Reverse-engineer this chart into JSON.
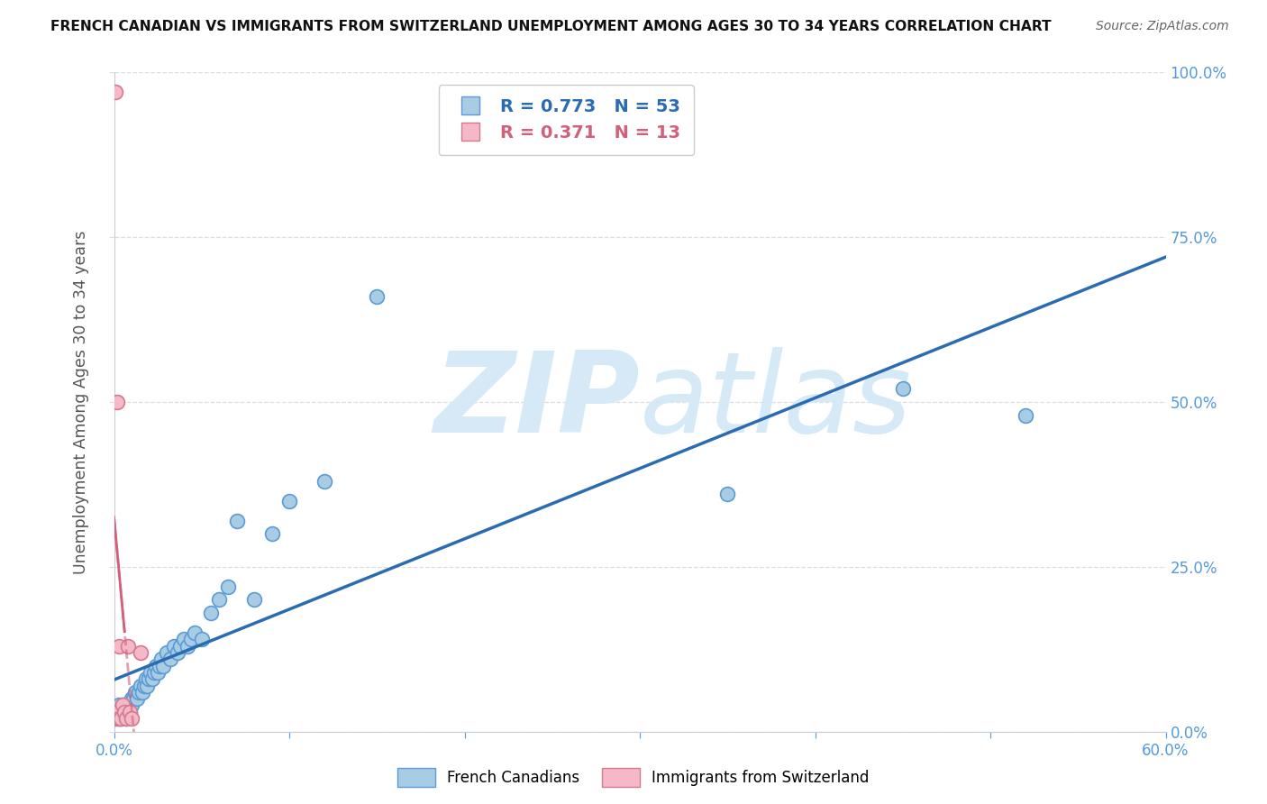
{
  "title": "FRENCH CANADIAN VS IMMIGRANTS FROM SWITZERLAND UNEMPLOYMENT AMONG AGES 30 TO 34 YEARS CORRELATION CHART",
  "source": "Source: ZipAtlas.com",
  "ylabel": "Unemployment Among Ages 30 to 34 years",
  "xlim": [
    0.0,
    0.6
  ],
  "ylim": [
    0.0,
    1.0
  ],
  "yticks": [
    0.0,
    0.25,
    0.5,
    0.75,
    1.0
  ],
  "yticklabels": [
    "0.0%",
    "25.0%",
    "50.0%",
    "75.0%",
    "100.0%"
  ],
  "xticks_minor": [
    0.0,
    0.1,
    0.2,
    0.3,
    0.4,
    0.5,
    0.6
  ],
  "blue_label": "French Canadians",
  "pink_label": "Immigrants from Switzerland",
  "blue_R": "0.773",
  "blue_N": "53",
  "pink_R": "0.371",
  "pink_N": "13",
  "blue_marker_color": "#a8cce4",
  "blue_edge_color": "#5b9bd5",
  "blue_line_color": "#2b6cb0",
  "pink_marker_color": "#f4b8c8",
  "pink_edge_color": "#d47a8f",
  "pink_line_color": "#d45f7a",
  "axis_tick_color": "#5599dd",
  "watermark_color": "#d5e9f7",
  "blue_scatter_x": [
    0.001,
    0.002,
    0.003,
    0.003,
    0.004,
    0.005,
    0.005,
    0.006,
    0.007,
    0.008,
    0.009,
    0.01,
    0.01,
    0.011,
    0.012,
    0.013,
    0.014,
    0.015,
    0.016,
    0.017,
    0.018,
    0.019,
    0.02,
    0.021,
    0.022,
    0.023,
    0.024,
    0.025,
    0.026,
    0.027,
    0.028,
    0.03,
    0.032,
    0.034,
    0.036,
    0.038,
    0.04,
    0.042,
    0.044,
    0.046,
    0.05,
    0.055,
    0.06,
    0.065,
    0.07,
    0.08,
    0.09,
    0.1,
    0.12,
    0.15,
    0.35,
    0.45,
    0.52
  ],
  "blue_scatter_y": [
    0.02,
    0.03,
    0.02,
    0.04,
    0.02,
    0.03,
    0.04,
    0.03,
    0.02,
    0.04,
    0.03,
    0.05,
    0.04,
    0.05,
    0.06,
    0.05,
    0.06,
    0.07,
    0.06,
    0.07,
    0.08,
    0.07,
    0.08,
    0.09,
    0.08,
    0.09,
    0.1,
    0.09,
    0.1,
    0.11,
    0.1,
    0.12,
    0.11,
    0.13,
    0.12,
    0.13,
    0.14,
    0.13,
    0.14,
    0.15,
    0.14,
    0.18,
    0.2,
    0.22,
    0.32,
    0.2,
    0.3,
    0.35,
    0.38,
    0.66,
    0.36,
    0.52,
    0.48
  ],
  "pink_scatter_x": [
    0.001,
    0.002,
    0.002,
    0.003,
    0.003,
    0.004,
    0.005,
    0.006,
    0.007,
    0.008,
    0.009,
    0.01,
    0.015
  ],
  "pink_scatter_y": [
    0.97,
    0.03,
    0.5,
    0.02,
    0.13,
    0.02,
    0.04,
    0.03,
    0.02,
    0.13,
    0.03,
    0.02,
    0.12
  ],
  "pink_line_x0": 0.0,
  "pink_line_y0": 0.28,
  "pink_line_x1": 0.006,
  "pink_line_y1": 0.0
}
